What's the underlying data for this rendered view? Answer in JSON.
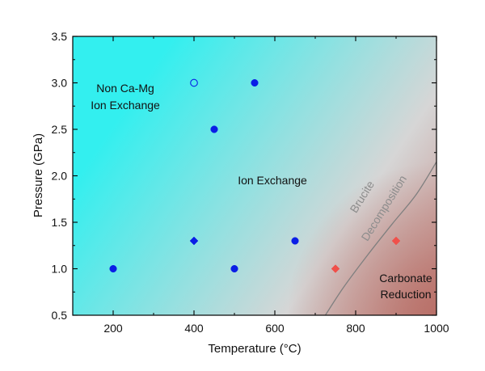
{
  "chart_data": {
    "type": "scatter",
    "title": "",
    "xlabel": "Temperature (°C)",
    "ylabel": "Pressure (GPa)",
    "xlim": [
      100,
      1000
    ],
    "ylim": [
      0.5,
      3.5
    ],
    "xticks": [
      200,
      400,
      600,
      800,
      1000
    ],
    "xtick_labels": [
      "200",
      "400",
      "600",
      "800",
      "1000"
    ],
    "yticks": [
      0.5,
      1.0,
      1.5,
      2.0,
      2.5,
      3.0,
      3.5
    ],
    "ytick_labels": [
      "0.5",
      "1.0",
      "1.5",
      "2.0",
      "2.5",
      "3.0",
      "3.5"
    ],
    "grid": false,
    "background": {
      "gradient_colors": [
        "#33efef",
        "#d6d6d6",
        "#c07a74"
      ],
      "description_colors": {
        "ion_exchange": "#33efef",
        "carbonate_reduction": "#b86e66"
      }
    },
    "series": [
      {
        "name": "filled-circles",
        "marker": "circle",
        "filled": true,
        "color": "#0a1ee6",
        "points": [
          {
            "x": 200,
            "y": 1.0
          },
          {
            "x": 500,
            "y": 1.0
          },
          {
            "x": 650,
            "y": 1.3
          },
          {
            "x": 450,
            "y": 2.5
          },
          {
            "x": 550,
            "y": 3.0
          }
        ]
      },
      {
        "name": "open-circle",
        "marker": "circle",
        "filled": false,
        "color": "#0a1ee6",
        "points": [
          {
            "x": 400,
            "y": 3.0
          }
        ]
      },
      {
        "name": "blue-diamond",
        "marker": "diamond",
        "filled": true,
        "color": "#0a1ee6",
        "points": [
          {
            "x": 400,
            "y": 1.3
          }
        ]
      },
      {
        "name": "red-diamonds",
        "marker": "diamond",
        "filled": true,
        "color": "#f0504a",
        "points": [
          {
            "x": 750,
            "y": 1.0
          },
          {
            "x": 900,
            "y": 1.3
          }
        ]
      }
    ],
    "boundary_curve": {
      "name": "brucite-decomposition",
      "color": "#7f7f7f",
      "points": [
        {
          "x": 725,
          "y": 0.5
        },
        {
          "x": 770,
          "y": 0.8
        },
        {
          "x": 830,
          "y": 1.15
        },
        {
          "x": 890,
          "y": 1.48
        },
        {
          "x": 950,
          "y": 1.8
        },
        {
          "x": 1000,
          "y": 2.15
        }
      ]
    },
    "annotations": {
      "non_ca_mg_line1": "Non Ca-Mg",
      "non_ca_mg_line2": "Ion Exchange",
      "ion_exchange": "Ion Exchange",
      "brucite_line1": "Brucite",
      "brucite_line2": "Decomposition",
      "carbonate_line1": "Carbonate",
      "carbonate_line2": "Reduction"
    }
  }
}
